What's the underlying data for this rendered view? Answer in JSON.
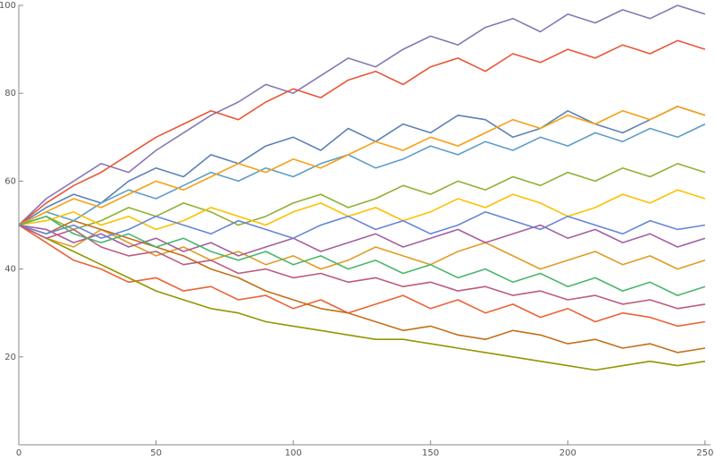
{
  "chart_data": {
    "type": "line",
    "x": [
      0,
      10,
      20,
      30,
      40,
      50,
      60,
      70,
      80,
      90,
      100,
      110,
      120,
      130,
      140,
      150,
      160,
      170,
      180,
      190,
      200,
      210,
      220,
      230,
      240,
      250
    ],
    "xlim": [
      0,
      252
    ],
    "ylim": [
      0,
      100
    ],
    "xticks": [
      0,
      50,
      100,
      150,
      200,
      250
    ],
    "yticks": [
      20,
      40,
      60,
      80,
      100
    ],
    "series": [
      {
        "color": "#5E81B5",
        "values": [
          50,
          54,
          57,
          55,
          60,
          63,
          61,
          66,
          64,
          68,
          70,
          67,
          72,
          69,
          73,
          71,
          75,
          74,
          70,
          72,
          76,
          73,
          71,
          74,
          77,
          75
        ]
      },
      {
        "color": "#E19C24",
        "values": [
          50,
          47,
          45,
          49,
          46,
          43,
          45,
          42,
          44,
          41,
          43,
          40,
          42,
          45,
          43,
          41,
          44,
          46,
          43,
          40,
          42,
          44,
          41,
          43,
          40,
          42
        ]
      },
      {
        "color": "#8FB032",
        "values": [
          50,
          52,
          49,
          51,
          54,
          52,
          55,
          53,
          50,
          52,
          55,
          57,
          54,
          56,
          59,
          57,
          60,
          58,
          61,
          59,
          62,
          60,
          63,
          61,
          64,
          62
        ]
      },
      {
        "color": "#EB6235",
        "values": [
          50,
          46,
          42,
          40,
          37,
          38,
          35,
          36,
          33,
          34,
          31,
          33,
          30,
          32,
          34,
          31,
          33,
          30,
          32,
          29,
          31,
          28,
          30,
          29,
          27,
          28
        ]
      },
      {
        "color": "#8778B3",
        "values": [
          50,
          56,
          60,
          64,
          62,
          67,
          71,
          75,
          78,
          82,
          80,
          84,
          88,
          86,
          90,
          93,
          91,
          95,
          97,
          94,
          98,
          96,
          99,
          97,
          100,
          98
        ]
      },
      {
        "color": "#C56E1A",
        "values": [
          50,
          48,
          51,
          49,
          47,
          45,
          43,
          40,
          38,
          35,
          33,
          31,
          30,
          28,
          26,
          27,
          25,
          24,
          26,
          25,
          23,
          24,
          22,
          23,
          21,
          22
        ]
      },
      {
        "color": "#5D9EC7",
        "values": [
          50,
          53,
          51,
          55,
          58,
          56,
          59,
          62,
          60,
          63,
          61,
          64,
          66,
          63,
          65,
          68,
          66,
          69,
          67,
          70,
          68,
          71,
          69,
          72,
          70,
          73
        ]
      },
      {
        "color": "#FFBF00",
        "values": [
          50,
          51,
          53,
          50,
          52,
          49,
          51,
          54,
          52,
          50,
          53,
          55,
          52,
          54,
          51,
          53,
          56,
          54,
          57,
          55,
          52,
          54,
          57,
          55,
          58,
          56
        ]
      },
      {
        "color": "#A5609D",
        "values": [
          50,
          49,
          46,
          48,
          45,
          47,
          44,
          46,
          43,
          45,
          47,
          44,
          46,
          48,
          45,
          47,
          49,
          46,
          48,
          50,
          47,
          49,
          46,
          48,
          45,
          47
        ]
      },
      {
        "color": "#929600",
        "values": [
          50,
          47,
          44,
          41,
          38,
          35,
          33,
          31,
          30,
          28,
          27,
          26,
          25,
          24,
          24,
          23,
          22,
          21,
          20,
          19,
          18,
          17,
          18,
          19,
          18,
          19
        ]
      },
      {
        "color": "#E95536",
        "values": [
          50,
          55,
          59,
          62,
          66,
          70,
          73,
          76,
          74,
          78,
          81,
          79,
          83,
          85,
          82,
          86,
          88,
          85,
          89,
          87,
          90,
          88,
          91,
          89,
          92,
          90
        ]
      },
      {
        "color": "#6685D9",
        "values": [
          50,
          48,
          50,
          47,
          49,
          52,
          50,
          48,
          51,
          49,
          47,
          50,
          52,
          49,
          51,
          48,
          50,
          53,
          51,
          49,
          52,
          50,
          48,
          51,
          49,
          50
        ]
      },
      {
        "color": "#F89F13",
        "values": [
          50,
          53,
          56,
          54,
          57,
          60,
          58,
          61,
          64,
          62,
          65,
          63,
          66,
          69,
          67,
          70,
          68,
          71,
          74,
          72,
          75,
          73,
          76,
          74,
          77,
          75
        ]
      },
      {
        "color": "#BC5B80",
        "values": [
          50,
          47,
          49,
          45,
          43,
          44,
          41,
          42,
          39,
          40,
          38,
          39,
          37,
          38,
          36,
          37,
          35,
          36,
          34,
          35,
          33,
          34,
          32,
          33,
          31,
          32
        ]
      },
      {
        "color": "#47B66D",
        "values": [
          50,
          52,
          48,
          46,
          48,
          45,
          47,
          44,
          42,
          44,
          41,
          43,
          40,
          42,
          39,
          41,
          38,
          40,
          37,
          39,
          36,
          38,
          35,
          37,
          34,
          36
        ]
      }
    ]
  }
}
